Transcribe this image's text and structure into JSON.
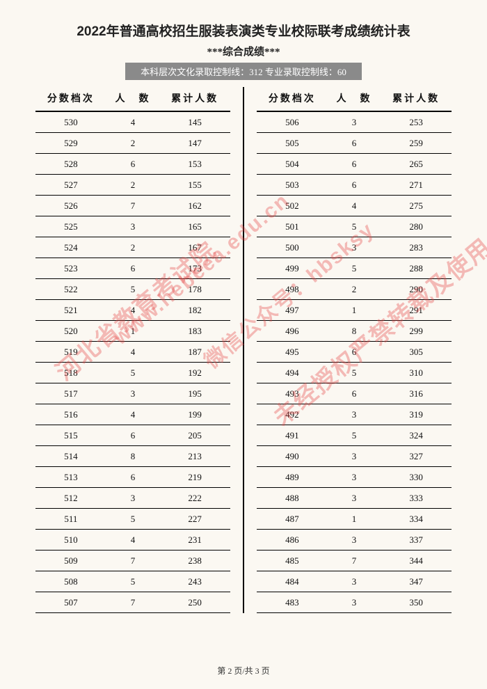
{
  "title": "2022年普通高校招生服装表演类专业校际联考成绩统计表",
  "subtitle": "***综合成绩***",
  "banner": "本科层次文化录取控制线：312 专业录取控制线：60",
  "headers": {
    "c1": "分数档次",
    "c2": "人　数",
    "c3": "累计人数"
  },
  "left": [
    {
      "a": "530",
      "b": "4",
      "c": "145"
    },
    {
      "a": "529",
      "b": "2",
      "c": "147"
    },
    {
      "a": "528",
      "b": "6",
      "c": "153"
    },
    {
      "a": "527",
      "b": "2",
      "c": "155"
    },
    {
      "a": "526",
      "b": "7",
      "c": "162"
    },
    {
      "a": "525",
      "b": "3",
      "c": "165"
    },
    {
      "a": "524",
      "b": "2",
      "c": "167"
    },
    {
      "a": "523",
      "b": "6",
      "c": "173"
    },
    {
      "a": "522",
      "b": "5",
      "c": "178"
    },
    {
      "a": "521",
      "b": "4",
      "c": "182"
    },
    {
      "a": "520",
      "b": "1",
      "c": "183"
    },
    {
      "a": "519",
      "b": "4",
      "c": "187"
    },
    {
      "a": "518",
      "b": "5",
      "c": "192"
    },
    {
      "a": "517",
      "b": "3",
      "c": "195"
    },
    {
      "a": "516",
      "b": "4",
      "c": "199"
    },
    {
      "a": "515",
      "b": "6",
      "c": "205"
    },
    {
      "a": "514",
      "b": "8",
      "c": "213"
    },
    {
      "a": "513",
      "b": "6",
      "c": "219"
    },
    {
      "a": "512",
      "b": "3",
      "c": "222"
    },
    {
      "a": "511",
      "b": "5",
      "c": "227"
    },
    {
      "a": "510",
      "b": "4",
      "c": "231"
    },
    {
      "a": "509",
      "b": "7",
      "c": "238"
    },
    {
      "a": "508",
      "b": "5",
      "c": "243"
    },
    {
      "a": "507",
      "b": "7",
      "c": "250"
    }
  ],
  "right": [
    {
      "a": "506",
      "b": "3",
      "c": "253"
    },
    {
      "a": "505",
      "b": "6",
      "c": "259"
    },
    {
      "a": "504",
      "b": "6",
      "c": "265"
    },
    {
      "a": "503",
      "b": "6",
      "c": "271"
    },
    {
      "a": "502",
      "b": "4",
      "c": "275"
    },
    {
      "a": "501",
      "b": "5",
      "c": "280"
    },
    {
      "a": "500",
      "b": "3",
      "c": "283"
    },
    {
      "a": "499",
      "b": "5",
      "c": "288"
    },
    {
      "a": "498",
      "b": "2",
      "c": "290"
    },
    {
      "a": "497",
      "b": "1",
      "c": "291"
    },
    {
      "a": "496",
      "b": "8",
      "c": "299"
    },
    {
      "a": "495",
      "b": "6",
      "c": "305"
    },
    {
      "a": "494",
      "b": "5",
      "c": "310"
    },
    {
      "a": "493",
      "b": "6",
      "c": "316"
    },
    {
      "a": "492",
      "b": "3",
      "c": "319"
    },
    {
      "a": "491",
      "b": "5",
      "c": "324"
    },
    {
      "a": "490",
      "b": "3",
      "c": "327"
    },
    {
      "a": "489",
      "b": "3",
      "c": "330"
    },
    {
      "a": "488",
      "b": "3",
      "c": "333"
    },
    {
      "a": "487",
      "b": "1",
      "c": "334"
    },
    {
      "a": "486",
      "b": "3",
      "c": "337"
    },
    {
      "a": "485",
      "b": "7",
      "c": "344"
    },
    {
      "a": "484",
      "b": "3",
      "c": "347"
    },
    {
      "a": "483",
      "b": "3",
      "c": "350"
    }
  ],
  "watermarks": {
    "wm1": "河北省教育考试院",
    "wm2": "www.hebeea.edu.cn",
    "wm3": "微信公众号：hbsksy",
    "wm4": "www.hebeea.edu.cn",
    "wm5": "未经授权严禁转载及使用",
    "wm6": "hbsksy"
  },
  "footer": "第 2 页/共 3 页"
}
